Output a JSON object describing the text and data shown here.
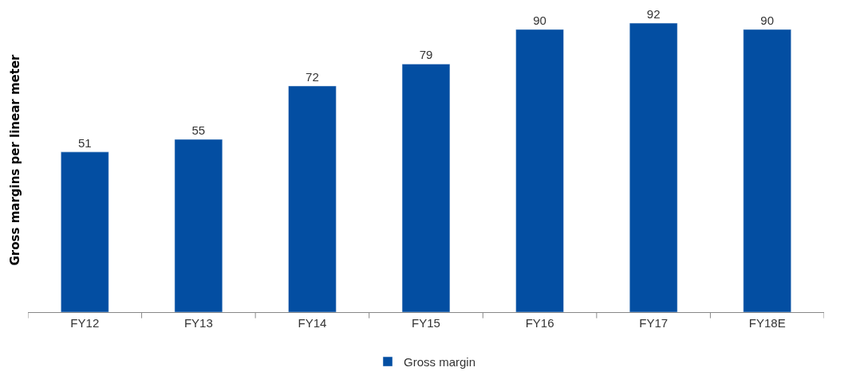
{
  "chart_data": {
    "type": "bar",
    "ylabel": "Gross margins per linear meter",
    "categories": [
      "FY12",
      "FY13",
      "FY14",
      "FY15",
      "FY16",
      "FY17",
      "FY18E"
    ],
    "series": [
      {
        "name": "Gross margin",
        "color": "#034ea2",
        "values": [
          51,
          55,
          72,
          79,
          90,
          92,
          90
        ]
      }
    ],
    "data_labels": true,
    "legend": "bottom"
  }
}
